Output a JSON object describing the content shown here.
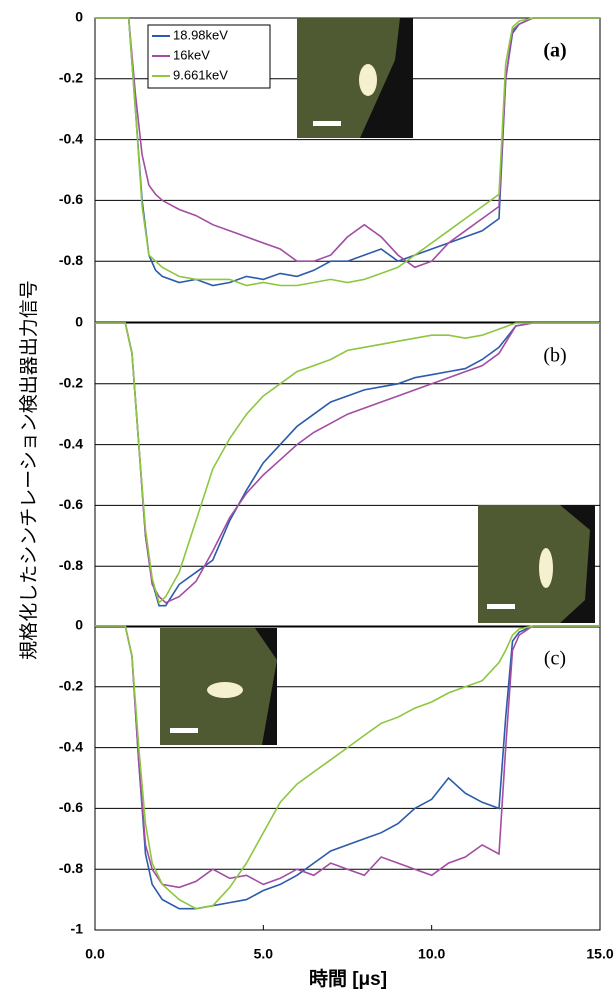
{
  "chart_data": [
    {
      "type": "line",
      "label": "(a)",
      "ylabel": "規格化したシンチレーション検出器出力信号",
      "x": [
        0,
        0.8,
        1.0,
        1.2,
        1.4,
        1.6,
        1.8,
        2,
        2.5,
        3,
        3.5,
        4,
        4.5,
        5,
        5.5,
        6,
        6.5,
        7,
        7.5,
        8,
        8.5,
        9,
        9.5,
        10,
        10.5,
        11,
        11.5,
        12,
        12.2,
        12.4,
        12.6,
        13,
        14,
        15
      ],
      "xlim": [
        0,
        15
      ],
      "ylim": [
        -1,
        0
      ],
      "yticks": [
        0,
        -0.2,
        -0.4,
        -0.6,
        -0.8
      ],
      "grid": true,
      "series": [
        {
          "name": "18.98keV",
          "color": "#2b5bab",
          "values": [
            0,
            0,
            0,
            -0.3,
            -0.6,
            -0.78,
            -0.83,
            -0.85,
            -0.87,
            -0.86,
            -0.88,
            -0.87,
            -0.85,
            -0.86,
            -0.84,
            -0.85,
            -0.83,
            -0.8,
            -0.8,
            -0.78,
            -0.76,
            -0.8,
            -0.78,
            -0.76,
            -0.74,
            -0.72,
            -0.7,
            -0.66,
            -0.2,
            -0.05,
            -0.02,
            0,
            0,
            0
          ]
        },
        {
          "name": "16keV",
          "color": "#a24da3",
          "values": [
            0,
            0,
            0,
            -0.25,
            -0.45,
            -0.55,
            -0.58,
            -0.6,
            -0.63,
            -0.65,
            -0.68,
            -0.7,
            -0.72,
            -0.74,
            -0.76,
            -0.8,
            -0.8,
            -0.78,
            -0.72,
            -0.68,
            -0.72,
            -0.78,
            -0.82,
            -0.8,
            -0.74,
            -0.7,
            -0.66,
            -0.62,
            -0.2,
            -0.04,
            -0.02,
            0,
            0,
            0
          ]
        },
        {
          "name": "9.661keV",
          "color": "#8dc63f",
          "values": [
            0,
            0,
            0,
            -0.3,
            -0.62,
            -0.78,
            -0.8,
            -0.82,
            -0.85,
            -0.86,
            -0.86,
            -0.86,
            -0.88,
            -0.87,
            -0.88,
            -0.88,
            -0.87,
            -0.86,
            -0.87,
            -0.86,
            -0.84,
            -0.82,
            -0.78,
            -0.74,
            -0.7,
            -0.66,
            -0.62,
            -0.58,
            -0.15,
            -0.03,
            -0.01,
            0,
            0,
            0
          ]
        }
      ]
    },
    {
      "type": "line",
      "label": "(b)",
      "x": [
        0,
        0.9,
        1.1,
        1.3,
        1.5,
        1.7,
        1.9,
        2.1,
        2.5,
        3,
        3.5,
        4,
        4.5,
        5,
        5.5,
        6,
        6.5,
        7,
        7.5,
        8,
        8.5,
        9,
        9.5,
        10,
        10.5,
        11,
        11.5,
        12,
        12.5,
        13,
        14,
        15
      ],
      "xlim": [
        0,
        15
      ],
      "ylim": [
        -1,
        0
      ],
      "yticks": [
        0,
        -0.2,
        -0.4,
        -0.6,
        -0.8
      ],
      "grid": true,
      "series": [
        {
          "color": "#2b5bab",
          "values": [
            0,
            0,
            -0.1,
            -0.4,
            -0.7,
            -0.85,
            -0.93,
            -0.93,
            -0.86,
            -0.82,
            -0.78,
            -0.65,
            -0.55,
            -0.46,
            -0.4,
            -0.34,
            -0.3,
            -0.26,
            -0.24,
            -0.22,
            -0.21,
            -0.2,
            -0.18,
            -0.17,
            -0.16,
            -0.15,
            -0.12,
            -0.08,
            -0.01,
            0,
            0,
            0
          ]
        },
        {
          "color": "#a24da3",
          "values": [
            0,
            0,
            -0.1,
            -0.4,
            -0.7,
            -0.86,
            -0.9,
            -0.92,
            -0.9,
            -0.85,
            -0.75,
            -0.64,
            -0.56,
            -0.5,
            -0.45,
            -0.4,
            -0.36,
            -0.33,
            -0.3,
            -0.28,
            -0.26,
            -0.24,
            -0.22,
            -0.2,
            -0.18,
            -0.16,
            -0.14,
            -0.1,
            -0.01,
            0,
            0,
            0
          ]
        },
        {
          "color": "#8dc63f",
          "values": [
            0,
            0,
            -0.1,
            -0.4,
            -0.68,
            -0.84,
            -0.92,
            -0.9,
            -0.82,
            -0.65,
            -0.48,
            -0.38,
            -0.3,
            -0.24,
            -0.2,
            -0.16,
            -0.14,
            -0.12,
            -0.09,
            -0.08,
            -0.07,
            -0.06,
            -0.05,
            -0.04,
            -0.04,
            -0.05,
            -0.04,
            -0.02,
            0,
            0,
            0,
            0
          ]
        }
      ]
    },
    {
      "type": "line",
      "label": "(c)",
      "xlabel": "時間 [μs]",
      "x": [
        0,
        0.9,
        1.1,
        1.3,
        1.5,
        1.7,
        2,
        2.5,
        3,
        3.5,
        4,
        4.5,
        5,
        5.5,
        6,
        6.5,
        7,
        7.5,
        8,
        8.5,
        9,
        9.5,
        10,
        10.5,
        11,
        11.5,
        12,
        12.2,
        12.4,
        12.6,
        13,
        14,
        15
      ],
      "xlim": [
        0,
        15
      ],
      "ylim": [
        -1,
        0
      ],
      "yticks": [
        0,
        -0.2,
        -0.4,
        -0.6,
        -0.8,
        -1
      ],
      "grid": true,
      "xticks": [
        {
          "value": 0,
          "label": "0.0"
        },
        {
          "value": 5,
          "label": "5.0"
        },
        {
          "value": 10,
          "label": "10.0"
        },
        {
          "value": 15,
          "label": "15.0"
        }
      ],
      "series": [
        {
          "color": "#2b5bab",
          "values": [
            0,
            0,
            -0.1,
            -0.45,
            -0.75,
            -0.85,
            -0.9,
            -0.93,
            -0.93,
            -0.92,
            -0.91,
            -0.9,
            -0.87,
            -0.85,
            -0.82,
            -0.78,
            -0.74,
            -0.72,
            -0.7,
            -0.68,
            -0.65,
            -0.6,
            -0.57,
            -0.5,
            -0.55,
            -0.58,
            -0.6,
            -0.3,
            -0.05,
            -0.02,
            0,
            0,
            0
          ]
        },
        {
          "color": "#a24da3",
          "values": [
            0,
            0,
            -0.1,
            -0.45,
            -0.72,
            -0.8,
            -0.85,
            -0.86,
            -0.84,
            -0.8,
            -0.83,
            -0.82,
            -0.85,
            -0.83,
            -0.8,
            -0.82,
            -0.78,
            -0.8,
            -0.82,
            -0.76,
            -0.78,
            -0.8,
            -0.82,
            -0.78,
            -0.76,
            -0.72,
            -0.75,
            -0.4,
            -0.08,
            -0.03,
            0,
            0,
            0
          ]
        },
        {
          "color": "#8dc63f",
          "values": [
            0,
            0,
            -0.1,
            -0.4,
            -0.65,
            -0.78,
            -0.85,
            -0.9,
            -0.93,
            -0.92,
            -0.86,
            -0.78,
            -0.68,
            -0.58,
            -0.52,
            -0.48,
            -0.44,
            -0.4,
            -0.36,
            -0.32,
            -0.3,
            -0.27,
            -0.25,
            -0.22,
            -0.2,
            -0.18,
            -0.12,
            -0.08,
            -0.03,
            -0.01,
            0,
            0,
            0
          ]
        }
      ]
    }
  ]
}
